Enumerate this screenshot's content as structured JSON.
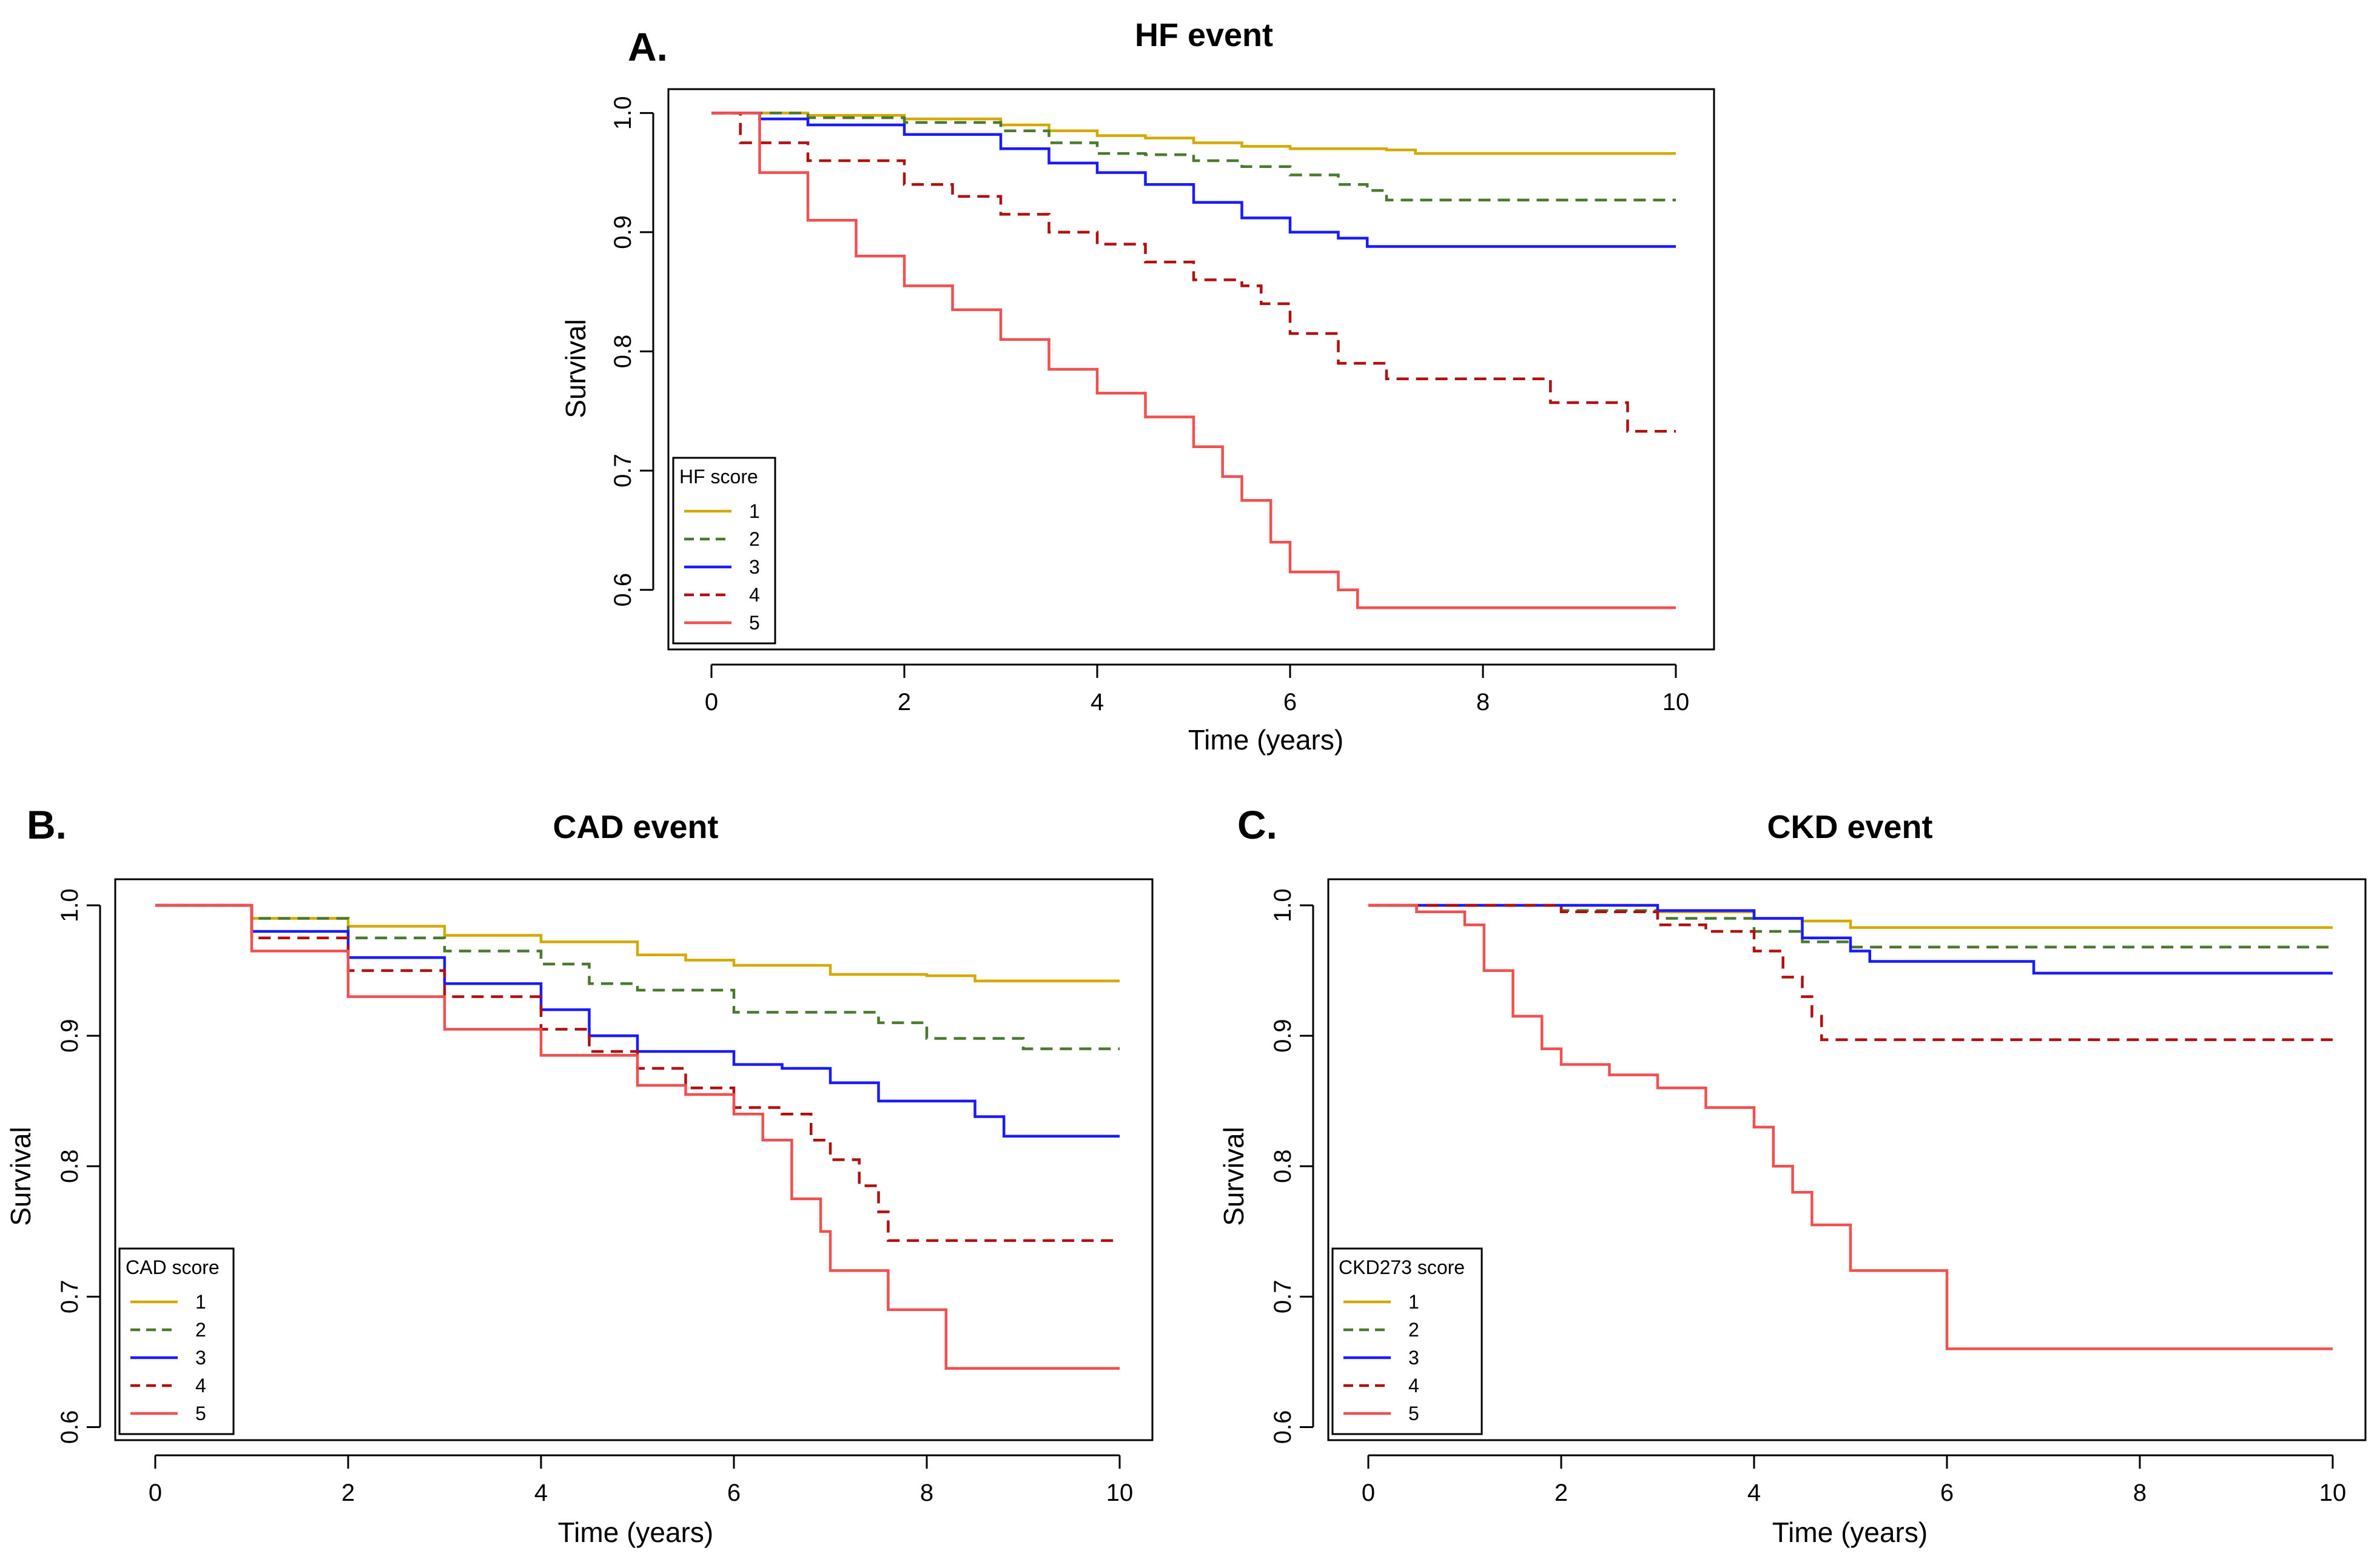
{
  "chart_data": [
    {
      "type": "line",
      "panel": "A.",
      "title": "HF event",
      "xlabel": "Time (years)",
      "ylabel": "Survival",
      "xlim": [
        0,
        10
      ],
      "ylim": [
        0.55,
        1.02
      ],
      "xticks": [
        "0",
        "2",
        "4",
        "6",
        "8",
        "10"
      ],
      "yticks": [
        "0.6",
        "0.7",
        "0.8",
        "0.9",
        "1.0"
      ],
      "legend": {
        "title": "HF score",
        "position": "bottom-left",
        "labels": [
          "1",
          "2",
          "3",
          "4",
          "5"
        ]
      },
      "series": [
        {
          "name": "1",
          "color": "#d4aa00",
          "dash": "solid",
          "x": [
            0,
            1,
            2,
            3,
            3.5,
            4,
            4.5,
            5,
            5.5,
            6,
            7,
            7.3,
            10
          ],
          "y": [
            1.0,
            0.998,
            0.995,
            0.99,
            0.985,
            0.981,
            0.979,
            0.975,
            0.972,
            0.97,
            0.969,
            0.966,
            0.966
          ]
        },
        {
          "name": "2",
          "color": "#4a7a2e",
          "dash": "dashed",
          "x": [
            0,
            1,
            2,
            3,
            3.5,
            4,
            4.5,
            5,
            5.5,
            6,
            6.5,
            6.8,
            7,
            10
          ],
          "y": [
            1.0,
            0.996,
            0.992,
            0.985,
            0.975,
            0.966,
            0.965,
            0.96,
            0.955,
            0.948,
            0.94,
            0.935,
            0.927,
            0.927
          ]
        },
        {
          "name": "3",
          "color": "#1a1aff",
          "dash": "solid",
          "x": [
            0,
            0.5,
            1,
            2,
            3,
            3.5,
            4,
            4.5,
            5,
            5.5,
            6,
            6.5,
            6.8,
            10
          ],
          "y": [
            1.0,
            0.995,
            0.99,
            0.982,
            0.97,
            0.958,
            0.95,
            0.94,
            0.925,
            0.912,
            0.9,
            0.895,
            0.888,
            0.888
          ]
        },
        {
          "name": "4",
          "color": "#b01010",
          "dash": "dashed",
          "x": [
            0,
            0.3,
            1,
            2,
            2.5,
            3,
            3.5,
            4,
            4.5,
            5,
            5.5,
            5.7,
            6,
            6.5,
            7,
            8.7,
            9.5,
            10
          ],
          "y": [
            1.0,
            0.975,
            0.96,
            0.94,
            0.93,
            0.915,
            0.9,
            0.89,
            0.875,
            0.86,
            0.855,
            0.84,
            0.815,
            0.79,
            0.777,
            0.757,
            0.733,
            0.733
          ]
        },
        {
          "name": "5",
          "color": "#f05050",
          "dash": "solid",
          "x": [
            0,
            0.5,
            1,
            1.5,
            2,
            2.5,
            3,
            3.5,
            4,
            4.5,
            5,
            5.3,
            5.5,
            5.8,
            6,
            6.5,
            6.7,
            10
          ],
          "y": [
            1.0,
            0.95,
            0.91,
            0.88,
            0.855,
            0.835,
            0.81,
            0.785,
            0.765,
            0.745,
            0.72,
            0.695,
            0.675,
            0.64,
            0.615,
            0.6,
            0.585,
            0.585
          ]
        }
      ]
    },
    {
      "type": "line",
      "panel": "B.",
      "title": "CAD event",
      "xlabel": "Time (years)",
      "ylabel": "Survival",
      "xlim": [
        0,
        10
      ],
      "ylim": [
        0.59,
        1.02
      ],
      "xticks": [
        "0",
        "2",
        "4",
        "6",
        "8",
        "10"
      ],
      "yticks": [
        "0.6",
        "0.7",
        "0.8",
        "0.9",
        "1.0"
      ],
      "legend": {
        "title": "CAD score",
        "position": "bottom-left",
        "labels": [
          "1",
          "2",
          "3",
          "4",
          "5"
        ]
      },
      "series": [
        {
          "name": "1",
          "color": "#d4aa00",
          "dash": "solid",
          "x": [
            0,
            1,
            2,
            3,
            4,
            5,
            5.5,
            6,
            7,
            8,
            8.5,
            10
          ],
          "y": [
            1.0,
            0.99,
            0.984,
            0.977,
            0.972,
            0.962,
            0.958,
            0.954,
            0.947,
            0.946,
            0.942,
            0.942
          ]
        },
        {
          "name": "2",
          "color": "#4a7a2e",
          "dash": "dashed",
          "x": [
            0,
            1,
            2,
            3,
            4,
            4.5,
            5,
            6,
            7,
            7.5,
            8,
            9,
            10
          ],
          "y": [
            1.0,
            0.99,
            0.975,
            0.965,
            0.955,
            0.94,
            0.935,
            0.918,
            0.918,
            0.91,
            0.898,
            0.89,
            0.89
          ]
        },
        {
          "name": "3",
          "color": "#1a1aff",
          "dash": "solid",
          "x": [
            0,
            1,
            2,
            3,
            4,
            4.5,
            5,
            6,
            6.5,
            7,
            7.5,
            8,
            8.5,
            8.8,
            10
          ],
          "y": [
            1.0,
            0.98,
            0.96,
            0.94,
            0.92,
            0.9,
            0.888,
            0.878,
            0.875,
            0.864,
            0.85,
            0.85,
            0.838,
            0.823,
            0.823
          ]
        },
        {
          "name": "4",
          "color": "#b01010",
          "dash": "dashed",
          "x": [
            0,
            1,
            2,
            3,
            4,
            4.5,
            5,
            5.5,
            6,
            6.5,
            6.8,
            7,
            7.3,
            7.5,
            7.6,
            10
          ],
          "y": [
            1.0,
            0.975,
            0.95,
            0.93,
            0.905,
            0.888,
            0.875,
            0.86,
            0.845,
            0.84,
            0.82,
            0.805,
            0.785,
            0.765,
            0.743,
            0.743
          ]
        },
        {
          "name": "5",
          "color": "#f05050",
          "dash": "solid",
          "x": [
            0,
            1,
            2,
            3,
            4,
            5,
            5.5,
            6,
            6.3,
            6.6,
            6.9,
            7.0,
            7.2,
            7.6,
            8.2,
            10
          ],
          "y": [
            1.0,
            0.965,
            0.93,
            0.905,
            0.885,
            0.862,
            0.855,
            0.84,
            0.82,
            0.775,
            0.75,
            0.72,
            0.72,
            0.69,
            0.645,
            0.645
          ]
        }
      ]
    },
    {
      "type": "line",
      "panel": "C.",
      "title": "CKD event",
      "xlabel": "Time (years)",
      "ylabel": "Survival",
      "xlim": [
        0,
        10
      ],
      "ylim": [
        0.59,
        1.02
      ],
      "xticks": [
        "0",
        "2",
        "4",
        "6",
        "8",
        "10"
      ],
      "yticks": [
        "0.6",
        "0.7",
        "0.8",
        "0.9",
        "1.0"
      ],
      "legend": {
        "title": "CKD273 score",
        "position": "bottom-left",
        "labels": [
          "1",
          "2",
          "3",
          "4",
          "5"
        ]
      },
      "series": [
        {
          "name": "1",
          "color": "#d4aa00",
          "dash": "solid",
          "x": [
            0,
            3,
            4,
            4.5,
            5,
            10
          ],
          "y": [
            1.0,
            0.995,
            0.99,
            0.988,
            0.983,
            0.983
          ]
        },
        {
          "name": "2",
          "color": "#4a7a2e",
          "dash": "dashed",
          "x": [
            0,
            2,
            3,
            4,
            4.5,
            5,
            10
          ],
          "y": [
            1.0,
            0.996,
            0.99,
            0.98,
            0.972,
            0.968,
            0.968
          ]
        },
        {
          "name": "3",
          "color": "#1a1aff",
          "dash": "solid",
          "x": [
            0,
            3,
            4,
            4.5,
            5,
            5.2,
            6,
            6.9,
            10
          ],
          "y": [
            1.0,
            0.996,
            0.99,
            0.975,
            0.965,
            0.957,
            0.957,
            0.948,
            0.948
          ]
        },
        {
          "name": "4",
          "color": "#b01010",
          "dash": "dashed",
          "x": [
            0,
            2,
            3,
            3.5,
            4,
            4.3,
            4.5,
            4.6,
            4.7,
            10
          ],
          "y": [
            1.0,
            0.995,
            0.985,
            0.98,
            0.965,
            0.945,
            0.93,
            0.915,
            0.897,
            0.897
          ]
        },
        {
          "name": "5",
          "color": "#f05050",
          "dash": "solid",
          "x": [
            0,
            0.5,
            1,
            1.2,
            1.5,
            1.8,
            2,
            2.5,
            3,
            3.5,
            4,
            4.2,
            4.4,
            4.6,
            5,
            6,
            10
          ],
          "y": [
            1.0,
            0.995,
            0.985,
            0.95,
            0.915,
            0.89,
            0.878,
            0.87,
            0.86,
            0.845,
            0.83,
            0.8,
            0.78,
            0.755,
            0.72,
            0.66,
            0.66
          ]
        }
      ]
    }
  ]
}
